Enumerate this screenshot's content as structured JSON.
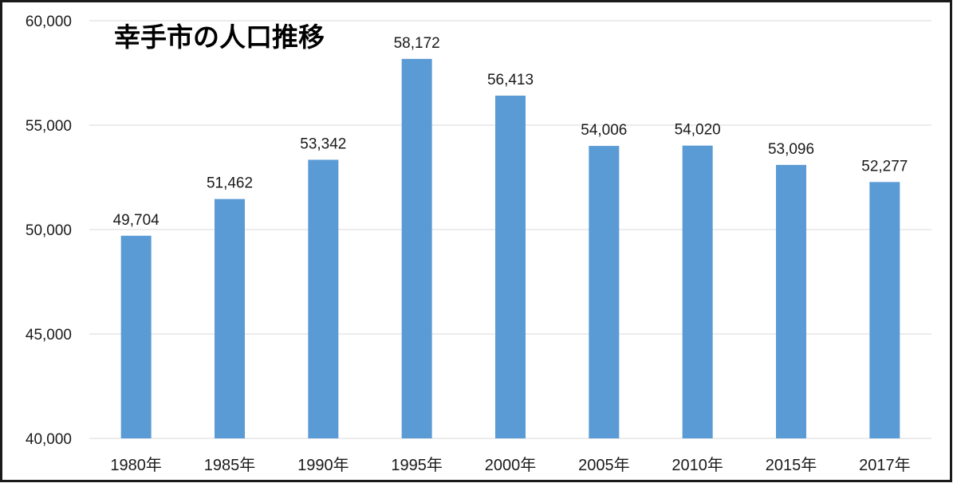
{
  "chart_data": {
    "type": "bar",
    "title": "幸手市の人口推移",
    "categories": [
      "1980年",
      "1985年",
      "1990年",
      "1995年",
      "2000年",
      "2005年",
      "2010年",
      "2015年",
      "2017年"
    ],
    "values": [
      49704,
      51462,
      53342,
      58172,
      56413,
      54006,
      54020,
      53096,
      52277
    ],
    "value_labels": [
      "49,704",
      "51,462",
      "53,342",
      "58,172",
      "56,413",
      "54,006",
      "54,020",
      "53,096",
      "52,277"
    ],
    "ylim": [
      40000,
      60000
    ],
    "yticks": [
      40000,
      45000,
      50000,
      55000,
      60000
    ],
    "ytick_labels": [
      "40,000",
      "45,000",
      "50,000",
      "55,000",
      "60,000"
    ],
    "xlabel": "",
    "ylabel": "",
    "grid": true,
    "legend": "none",
    "bar_color": "#5b9bd5"
  }
}
